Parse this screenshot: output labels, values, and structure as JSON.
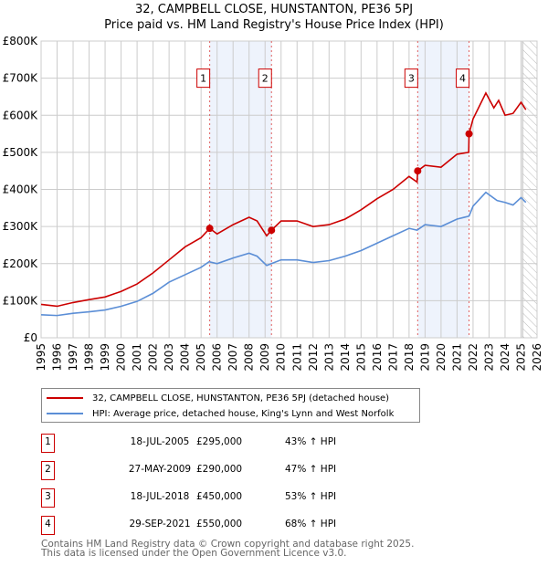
{
  "chart_data": {
    "type": "line",
    "title": "32, CAMPBELL CLOSE, HUNSTANTON, PE36 5PJ",
    "subtitle": "Price paid vs. HM Land Registry's House Price Index (HPI)",
    "xlim": [
      1995,
      2026
    ],
    "ylim": [
      0,
      800000
    ],
    "yticks": [
      0,
      100000,
      200000,
      300000,
      400000,
      500000,
      600000,
      700000,
      800000
    ],
    "ytick_labels": [
      "£0",
      "£100K",
      "£200K",
      "£300K",
      "£400K",
      "£500K",
      "£600K",
      "£700K",
      "£800K"
    ],
    "xticks": [
      "1995",
      "1996",
      "1997",
      "1998",
      "1999",
      "2000",
      "2001",
      "2002",
      "2003",
      "2004",
      "2005",
      "2006",
      "2007",
      "2008",
      "2009",
      "2010",
      "2011",
      "2012",
      "2013",
      "2014",
      "2015",
      "2016",
      "2017",
      "2018",
      "2019",
      "2020",
      "2021",
      "2022",
      "2023",
      "2024",
      "2025",
      "2026"
    ],
    "grid": true,
    "series": [
      {
        "name": "32, CAMPBELL CLOSE, HUNSTANTON, PE36 5PJ (detached house)",
        "color": "#cc0000",
        "x": [
          1995,
          1996,
          1997,
          1998,
          1999,
          2000,
          2001,
          2002,
          2003,
          2004,
          2005,
          2005.54,
          2006,
          2007,
          2008,
          2008.5,
          2009.1,
          2009.4,
          2010,
          2011,
          2012,
          2013,
          2014,
          2015,
          2016,
          2017,
          2018,
          2018.5,
          2018.54,
          2019,
          2020,
          2021,
          2021.73,
          2021.75,
          2022,
          2022.8,
          2023.3,
          2023.6,
          2024,
          2024.5,
          2025,
          2025.3
        ],
        "y": [
          90000,
          85000,
          95000,
          103000,
          110000,
          125000,
          145000,
          175000,
          210000,
          245000,
          270000,
          295000,
          280000,
          305000,
          325000,
          315000,
          275000,
          290000,
          315000,
          315000,
          300000,
          305000,
          320000,
          345000,
          375000,
          400000,
          435000,
          420000,
          450000,
          465000,
          460000,
          495000,
          500000,
          550000,
          590000,
          660000,
          620000,
          640000,
          600000,
          605000,
          635000,
          615000
        ]
      },
      {
        "name": "HPI: Average price, detached house, King's Lynn and West Norfolk",
        "color": "#5b8ed6",
        "x": [
          1995,
          1996,
          1997,
          1998,
          1999,
          2000,
          2001,
          2002,
          2003,
          2004,
          2005,
          2005.5,
          2006,
          2007,
          2008,
          2008.5,
          2009.1,
          2010,
          2011,
          2012,
          2013,
          2014,
          2015,
          2016,
          2017,
          2018,
          2018.5,
          2019,
          2020,
          2021,
          2021.75,
          2022,
          2022.8,
          2023.5,
          2024,
          2024.5,
          2025,
          2025.3
        ],
        "y": [
          62000,
          60000,
          66000,
          70000,
          75000,
          85000,
          98000,
          120000,
          150000,
          170000,
          190000,
          205000,
          200000,
          215000,
          228000,
          220000,
          195000,
          210000,
          210000,
          203000,
          208000,
          220000,
          235000,
          255000,
          275000,
          295000,
          290000,
          305000,
          300000,
          320000,
          328000,
          355000,
          392000,
          370000,
          365000,
          358000,
          378000,
          365000
        ]
      }
    ],
    "sales": [
      {
        "label": "1",
        "x": 2005.54,
        "y": 295000
      },
      {
        "label": "2",
        "x": 2009.4,
        "y": 290000
      },
      {
        "label": "3",
        "x": 2018.54,
        "y": 450000
      },
      {
        "label": "4",
        "x": 2021.75,
        "y": 550000
      }
    ],
    "shaded_ranges": [
      [
        2005.54,
        2009.4
      ],
      [
        2018.54,
        2021.75
      ]
    ],
    "forecast_from": 2025.1
  },
  "transactions": [
    {
      "num": "1",
      "date": "18-JUL-2005",
      "price": "£295,000",
      "hpi": "43% ↑ HPI"
    },
    {
      "num": "2",
      "date": "27-MAY-2009",
      "price": "£290,000",
      "hpi": "47% ↑ HPI"
    },
    {
      "num": "3",
      "date": "18-JUL-2018",
      "price": "£450,000",
      "hpi": "53% ↑ HPI"
    },
    {
      "num": "4",
      "date": "29-SEP-2021",
      "price": "£550,000",
      "hpi": "68% ↑ HPI"
    }
  ],
  "footer": {
    "line1": "Contains HM Land Registry data © Crown copyright and database right 2025.",
    "line2": "This data is licensed under the Open Government Licence v3.0."
  }
}
